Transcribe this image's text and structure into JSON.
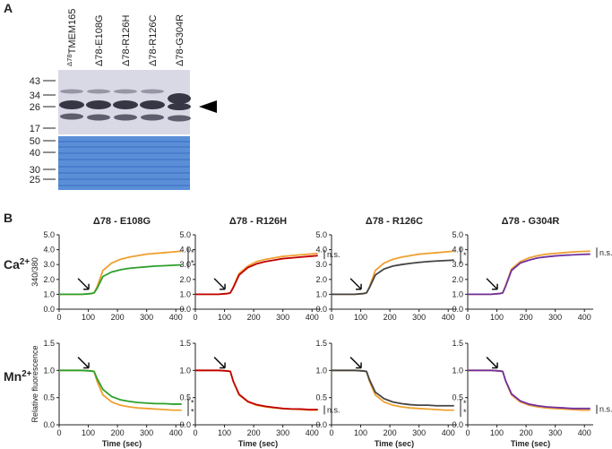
{
  "panel_a": {
    "label": "A",
    "lanes": [
      {
        "sup": "Δ78",
        "base": "TMEM165"
      },
      "Δ78-E108G",
      "Δ78-R126H",
      "Δ78-R126C",
      "Δ78-G304R"
    ],
    "markers_top": [
      43,
      34,
      26,
      17
    ],
    "markers_bottom": [
      50,
      40,
      30,
      25
    ]
  },
  "panel_b": {
    "label": "B",
    "row_labels": [
      {
        "base": "Ca",
        "sup": "2+"
      },
      {
        "base": "Mn",
        "sup": "2+"
      }
    ]
  },
  "chart_data": [
    {
      "type": "line",
      "title": "Δ78 - E108G",
      "y_label": "340/380",
      "x": [
        0,
        40,
        80,
        110,
        120,
        130,
        150,
        180,
        210,
        240,
        270,
        300,
        330,
        360,
        390,
        420
      ],
      "xlim": [
        0,
        430
      ],
      "xticks": [
        0,
        100,
        200,
        300,
        400
      ],
      "ylim": [
        0,
        5
      ],
      "yticks": [
        {
          "value": 0,
          "label": "0.0"
        },
        {
          "value": 1,
          "label": "1.0"
        },
        {
          "value": 2,
          "label": "2.0"
        },
        {
          "value": 3,
          "label": "3.0"
        },
        {
          "value": 4,
          "label": "4.0"
        },
        {
          "value": 5,
          "label": "5.0"
        }
      ],
      "series": [
        {
          "color": "#f0a030",
          "values": [
            1,
            1,
            1,
            1.05,
            1.1,
            1.5,
            2.6,
            3.1,
            3.35,
            3.5,
            3.6,
            3.7,
            3.75,
            3.8,
            3.85,
            3.9
          ]
        },
        {
          "color": "#2ca02c",
          "values": [
            1,
            1,
            1,
            1.05,
            1.1,
            1.4,
            2.2,
            2.5,
            2.65,
            2.75,
            2.8,
            2.85,
            2.9,
            2.92,
            2.95,
            2.98
          ]
        }
      ],
      "annotations": [
        "*",
        "*"
      ]
    },
    {
      "type": "line",
      "title": "Δ78 - R126H",
      "x": [
        0,
        40,
        80,
        110,
        120,
        130,
        150,
        180,
        210,
        240,
        270,
        300,
        330,
        360,
        390,
        420
      ],
      "xlim": [
        0,
        430
      ],
      "xticks": [
        0,
        100,
        200,
        300,
        400
      ],
      "ylim": [
        0,
        5
      ],
      "yticks": [
        {
          "value": 0,
          "label": "0.0"
        },
        {
          "value": 1,
          "label": "1.0"
        },
        {
          "value": 2,
          "label": "2.0"
        },
        {
          "value": 3,
          "label": "3.0"
        },
        {
          "value": 4,
          "label": "4.0"
        },
        {
          "value": 5,
          "label": "5.0"
        }
      ],
      "series": [
        {
          "color": "#f0a030",
          "values": [
            1,
            1,
            1,
            1.05,
            1.1,
            1.5,
            2.4,
            2.9,
            3.2,
            3.35,
            3.45,
            3.55,
            3.6,
            3.65,
            3.7,
            3.75
          ]
        },
        {
          "color": "#c00000",
          "values": [
            1,
            1,
            1,
            1.05,
            1.1,
            1.45,
            2.3,
            2.8,
            3.05,
            3.2,
            3.3,
            3.4,
            3.45,
            3.5,
            3.55,
            3.6
          ]
        }
      ],
      "annotations": [
        "n.s."
      ]
    },
    {
      "type": "line",
      "title": "Δ78 - R126C",
      "x": [
        0,
        40,
        80,
        110,
        120,
        130,
        150,
        180,
        210,
        240,
        270,
        300,
        330,
        360,
        390,
        420
      ],
      "xlim": [
        0,
        430
      ],
      "xticks": [
        0,
        100,
        200,
        300,
        400
      ],
      "ylim": [
        0,
        5
      ],
      "yticks": [
        {
          "value": 0,
          "label": "0.0"
        },
        {
          "value": 1,
          "label": "1.0"
        },
        {
          "value": 2,
          "label": "2.0"
        },
        {
          "value": 3,
          "label": "3.0"
        },
        {
          "value": 4,
          "label": "4.0"
        },
        {
          "value": 5,
          "label": "5.0"
        }
      ],
      "series": [
        {
          "color": "#f0a030",
          "values": [
            1,
            1,
            1,
            1.05,
            1.1,
            1.5,
            2.6,
            3.1,
            3.35,
            3.5,
            3.6,
            3.7,
            3.75,
            3.8,
            3.85,
            3.9
          ]
        },
        {
          "color": "#444444",
          "values": [
            1,
            1,
            1,
            1.05,
            1.1,
            1.45,
            2.3,
            2.7,
            2.9,
            3.0,
            3.08,
            3.15,
            3.2,
            3.24,
            3.27,
            3.3
          ]
        }
      ],
      "annotations": [
        "*"
      ]
    },
    {
      "type": "line",
      "title": "Δ78 - G304R",
      "x": [
        0,
        40,
        80,
        110,
        120,
        130,
        150,
        180,
        210,
        240,
        270,
        300,
        330,
        360,
        390,
        420
      ],
      "xlim": [
        0,
        430
      ],
      "xticks": [
        0,
        100,
        200,
        300,
        400
      ],
      "ylim": [
        0,
        5
      ],
      "yticks": [
        {
          "value": 0,
          "label": "0.0"
        },
        {
          "value": 1,
          "label": "1.0"
        },
        {
          "value": 2,
          "label": "2.0"
        },
        {
          "value": 3,
          "label": "3.0"
        },
        {
          "value": 4,
          "label": "4.0"
        },
        {
          "value": 5,
          "label": "5.0"
        }
      ],
      "series": [
        {
          "color": "#f0a030",
          "values": [
            1,
            1,
            1,
            1.05,
            1.1,
            1.6,
            2.7,
            3.2,
            3.45,
            3.6,
            3.7,
            3.75,
            3.8,
            3.85,
            3.88,
            3.9
          ]
        },
        {
          "color": "#7030a0",
          "values": [
            1,
            1,
            1,
            1.05,
            1.1,
            1.55,
            2.6,
            3.1,
            3.3,
            3.45,
            3.52,
            3.58,
            3.62,
            3.65,
            3.68,
            3.7
          ]
        }
      ],
      "annotations": [
        "n.s."
      ]
    },
    {
      "type": "line",
      "y_label": "Relative fluorescence",
      "x_label": "Time (sec)",
      "x": [
        0,
        40,
        80,
        110,
        120,
        130,
        150,
        180,
        210,
        240,
        270,
        300,
        330,
        360,
        390,
        420
      ],
      "xlim": [
        0,
        430
      ],
      "xticks": [
        0,
        100,
        200,
        300,
        400
      ],
      "ylim": [
        0,
        1.5
      ],
      "yticks": [
        {
          "value": 0,
          "label": "0.0"
        },
        0.5,
        {
          "value": 1,
          "label": "1.0"
        },
        1.5
      ],
      "series": [
        {
          "color": "#f0a030",
          "values": [
            1,
            1,
            1,
            0.99,
            0.98,
            0.8,
            0.55,
            0.42,
            0.36,
            0.33,
            0.31,
            0.3,
            0.29,
            0.28,
            0.27,
            0.27
          ]
        },
        {
          "color": "#2ca02c",
          "values": [
            1,
            1,
            1,
            0.99,
            0.98,
            0.85,
            0.65,
            0.52,
            0.46,
            0.43,
            0.41,
            0.4,
            0.39,
            0.39,
            0.38,
            0.38
          ]
        }
      ],
      "annotations": [
        "*",
        "*"
      ]
    },
    {
      "type": "line",
      "x_label": "Time (sec)",
      "x": [
        0,
        40,
        80,
        110,
        120,
        130,
        150,
        180,
        210,
        240,
        270,
        300,
        330,
        360,
        390,
        420
      ],
      "xlim": [
        0,
        430
      ],
      "xticks": [
        0,
        100,
        200,
        300,
        400
      ],
      "ylim": [
        0,
        1.5
      ],
      "yticks": [
        {
          "value": 0,
          "label": "0.0"
        },
        0.5,
        {
          "value": 1,
          "label": "1.0"
        },
        1.5
      ],
      "series": [
        {
          "color": "#f0a030",
          "values": [
            1,
            1,
            1,
            0.99,
            0.98,
            0.8,
            0.55,
            0.42,
            0.36,
            0.33,
            0.31,
            0.3,
            0.29,
            0.28,
            0.27,
            0.27
          ]
        },
        {
          "color": "#c00000",
          "values": [
            1,
            1,
            1,
            0.99,
            0.98,
            0.8,
            0.56,
            0.43,
            0.37,
            0.34,
            0.32,
            0.3,
            0.29,
            0.29,
            0.28,
            0.28
          ]
        }
      ],
      "annotations": [
        "n.s."
      ]
    },
    {
      "type": "line",
      "x_label": "Time (sec)",
      "x": [
        0,
        40,
        80,
        110,
        120,
        130,
        150,
        180,
        210,
        240,
        270,
        300,
        330,
        360,
        390,
        420
      ],
      "xlim": [
        0,
        430
      ],
      "xticks": [
        0,
        100,
        200,
        300,
        400
      ],
      "ylim": [
        0,
        1.5
      ],
      "yticks": [
        {
          "value": 0,
          "label": "0.0"
        },
        0.5,
        {
          "value": 1,
          "label": "1.0"
        },
        1.5
      ],
      "series": [
        {
          "color": "#f0a030",
          "values": [
            1,
            1,
            1,
            0.99,
            0.98,
            0.8,
            0.55,
            0.42,
            0.36,
            0.33,
            0.31,
            0.3,
            0.29,
            0.28,
            0.27,
            0.27
          ]
        },
        {
          "color": "#444444",
          "values": [
            1,
            1,
            1,
            0.99,
            0.98,
            0.83,
            0.6,
            0.48,
            0.42,
            0.39,
            0.37,
            0.36,
            0.36,
            0.35,
            0.35,
            0.35
          ]
        }
      ],
      "annotations": [
        "*",
        "*"
      ]
    },
    {
      "type": "line",
      "x_label": "Time (sec)",
      "x": [
        0,
        40,
        80,
        110,
        120,
        130,
        150,
        180,
        210,
        240,
        270,
        300,
        330,
        360,
        390,
        420
      ],
      "xlim": [
        0,
        430
      ],
      "xticks": [
        0,
        100,
        200,
        300,
        400
      ],
      "ylim": [
        0,
        1.5
      ],
      "yticks": [
        {
          "value": 0,
          "label": "0.0"
        },
        0.5,
        {
          "value": 1,
          "label": "1.0"
        },
        1.5
      ],
      "series": [
        {
          "color": "#f0a030",
          "values": [
            1,
            1,
            1,
            0.99,
            0.98,
            0.8,
            0.55,
            0.42,
            0.36,
            0.33,
            0.31,
            0.3,
            0.29,
            0.28,
            0.27,
            0.27
          ]
        },
        {
          "color": "#7030a0",
          "values": [
            1,
            1,
            1,
            0.99,
            0.98,
            0.81,
            0.57,
            0.44,
            0.38,
            0.35,
            0.33,
            0.32,
            0.31,
            0.3,
            0.3,
            0.3
          ]
        }
      ],
      "annotations": [
        "n.s."
      ]
    }
  ]
}
